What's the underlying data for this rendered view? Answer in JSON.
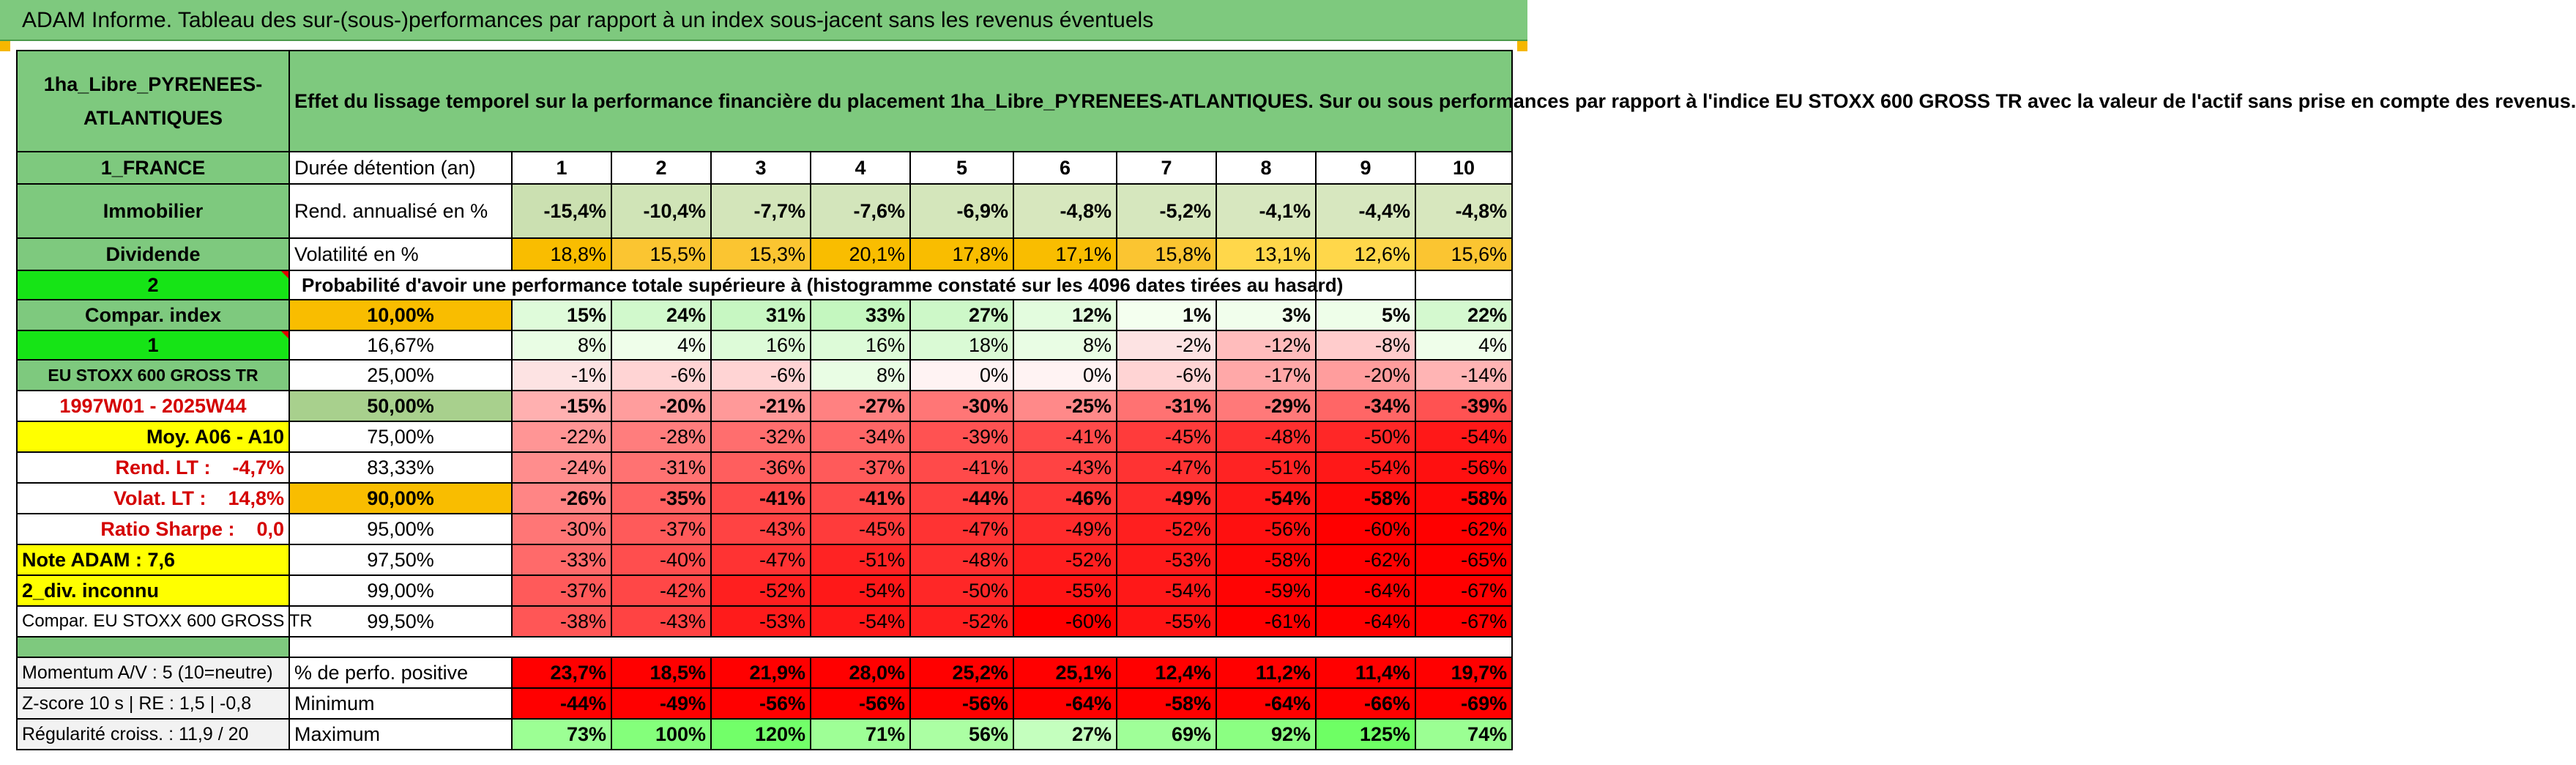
{
  "banner": "ADAM Informe. Tableau des sur-(sous-)performances par rapport à un index sous-jacent sans les revenus éventuels",
  "header": {
    "asset_name": "1ha_Libre_PYRENEES-ATLANTIQUES",
    "description": "Effet du lissage temporel sur la performance financière du placement 1ha_Libre_PYRENEES-ATLANTIQUES. Sur ou sous performances par rapport à l'indice EU STOXX 600 GROSS TR avec la valeur de l'actif sans prise en compte des revenus."
  },
  "left_panel": {
    "country": "1_FRANCE",
    "category": "Immobilier",
    "income_type": "Dividende",
    "selector_1": "2",
    "compar_index": "Compar. index",
    "selector_2": "1",
    "index_name": "EU STOXX 600 GROSS TR",
    "period": "1997W01 - 2025W44",
    "moy": "Moy. A06 - A10",
    "rend_lt": "Rend. LT :    -4,7%",
    "volat_lt": "Volat. LT :    14,8%",
    "sharpe": "Ratio Sharpe :    0,0",
    "note_adam": "Note ADAM : 7,6",
    "div_status": "2_div. inconnu",
    "compar_label": "Compar. EU STOXX 600 GROSS TR",
    "momentum": "Momentum A/V : 5 (10=neutre)",
    "zscore": "Z-score 10 s | RE : 1,5 | -0,8",
    "regularite": "Régularité croiss. : 11,9 / 20"
  },
  "table": {
    "duration_label": "Durée détention (an)",
    "years": [
      "1",
      "2",
      "3",
      "4",
      "5",
      "6",
      "7",
      "8",
      "9",
      "10"
    ],
    "rend_label": "Rend. annualisé en %",
    "rend": [
      "-15,4%",
      "-10,4%",
      "-7,7%",
      "-7,6%",
      "-6,9%",
      "-4,8%",
      "-5,2%",
      "-4,1%",
      "-4,4%",
      "-4,8%"
    ],
    "vol_label": "Volatilité en %",
    "vol": [
      "18,8%",
      "15,5%",
      "15,3%",
      "20,1%",
      "17,8%",
      "17,1%",
      "15,8%",
      "13,1%",
      "12,6%",
      "15,6%"
    ],
    "prob_title": "Probabilité d'avoir une performance totale supérieure à (histogramme constaté sur les 4096 dates tirées au hasard)",
    "prob_rows": [
      {
        "label": "10,00%",
        "vals": [
          "15%",
          "24%",
          "31%",
          "33%",
          "27%",
          "12%",
          "1%",
          "3%",
          "5%",
          "22%"
        ]
      },
      {
        "label": "16,67%",
        "vals": [
          "8%",
          "4%",
          "16%",
          "16%",
          "18%",
          "8%",
          "-2%",
          "-12%",
          "-8%",
          "4%"
        ]
      },
      {
        "label": "25,00%",
        "vals": [
          "-1%",
          "-6%",
          "-6%",
          "8%",
          "0%",
          "0%",
          "-6%",
          "-17%",
          "-20%",
          "-14%"
        ]
      },
      {
        "label": "50,00%",
        "vals": [
          "-15%",
          "-20%",
          "-21%",
          "-27%",
          "-30%",
          "-25%",
          "-31%",
          "-29%",
          "-34%",
          "-39%"
        ]
      },
      {
        "label": "75,00%",
        "vals": [
          "-22%",
          "-28%",
          "-32%",
          "-34%",
          "-39%",
          "-41%",
          "-45%",
          "-48%",
          "-50%",
          "-54%"
        ]
      },
      {
        "label": "83,33%",
        "vals": [
          "-24%",
          "-31%",
          "-36%",
          "-37%",
          "-41%",
          "-43%",
          "-47%",
          "-51%",
          "-54%",
          "-56%"
        ]
      },
      {
        "label": "90,00%",
        "vals": [
          "-26%",
          "-35%",
          "-41%",
          "-41%",
          "-44%",
          "-46%",
          "-49%",
          "-54%",
          "-58%",
          "-58%"
        ]
      },
      {
        "label": "95,00%",
        "vals": [
          "-30%",
          "-37%",
          "-43%",
          "-45%",
          "-47%",
          "-49%",
          "-52%",
          "-56%",
          "-60%",
          "-62%"
        ]
      },
      {
        "label": "97,50%",
        "vals": [
          "-33%",
          "-40%",
          "-47%",
          "-51%",
          "-48%",
          "-52%",
          "-53%",
          "-58%",
          "-62%",
          "-65%"
        ]
      },
      {
        "label": "99,00%",
        "vals": [
          "-37%",
          "-42%",
          "-52%",
          "-54%",
          "-50%",
          "-55%",
          "-54%",
          "-59%",
          "-64%",
          "-67%"
        ]
      },
      {
        "label": "99,50%",
        "vals": [
          "-38%",
          "-43%",
          "-53%",
          "-54%",
          "-52%",
          "-60%",
          "-55%",
          "-61%",
          "-64%",
          "-67%"
        ]
      }
    ],
    "pos_label": "% de perfo. positive",
    "pos": [
      "23,7%",
      "18,5%",
      "21,9%",
      "28,0%",
      "25,2%",
      "25,1%",
      "12,4%",
      "11,2%",
      "11,4%",
      "19,7%"
    ],
    "min_label": "Minimum",
    "min": [
      "-44%",
      "-49%",
      "-56%",
      "-56%",
      "-56%",
      "-64%",
      "-58%",
      "-64%",
      "-66%",
      "-69%"
    ],
    "max_label": "Maximum",
    "max": [
      "73%",
      "100%",
      "120%",
      "71%",
      "56%",
      "27%",
      "69%",
      "92%",
      "125%",
      "74%"
    ]
  },
  "colors": {
    "header_green": "#7ec97e",
    "bright_green": "#16e416",
    "yellow": "#ffff00",
    "orange": "#f9bd00",
    "red_text": "#d40000"
  }
}
